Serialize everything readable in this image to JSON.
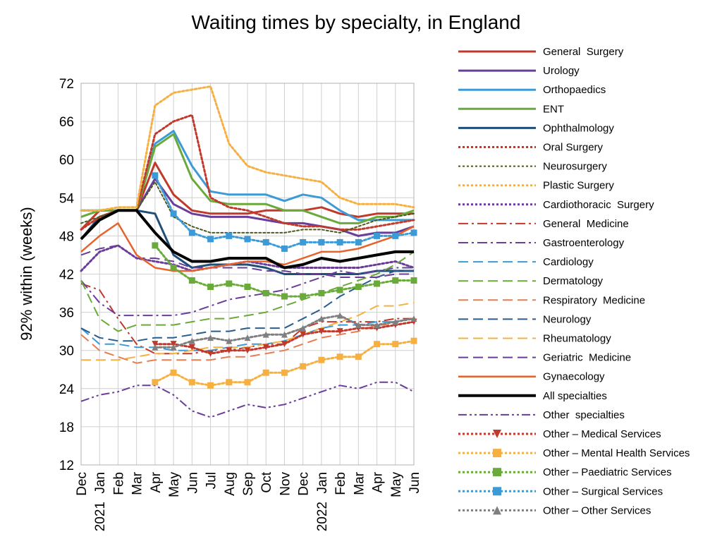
{
  "chart_data": {
    "type": "line",
    "title": "Waiting times by specialty, in England",
    "xlabel": "",
    "ylabel": "92% within (weeks)",
    "ylim": [
      12,
      72
    ],
    "yticks": [
      12,
      18,
      24,
      30,
      36,
      42,
      48,
      54,
      60,
      66,
      72
    ],
    "x_month_labels": [
      "Dec",
      "Jan",
      "Feb",
      "Mar",
      "Apr",
      "May",
      "Jun",
      "Jul",
      "Aug",
      "Sep",
      "Oct",
      "Nov",
      "Dec",
      "Jan",
      "Feb",
      "Mar",
      "Apr",
      "May",
      "Jun"
    ],
    "x_year_labels": [
      {
        "at": 1,
        "label": "2021"
      },
      {
        "at": 13,
        "label": "2022"
      }
    ],
    "grid": true,
    "legend_position": "right",
    "series": [
      {
        "name": "General  Surgery",
        "color": "#c0392b",
        "style": "solid",
        "width": 3,
        "values": [
          49,
          52,
          52,
          52,
          59.5,
          54.5,
          52,
          51.5,
          51.5,
          51.5,
          52,
          52,
          52,
          52.5,
          51.5,
          51,
          51.5,
          51.5,
          51.5
        ]
      },
      {
        "name": "Urology",
        "color": "#6a3d9a",
        "style": "solid",
        "width": 3,
        "values": [
          47.5,
          51,
          52,
          52,
          57,
          53,
          51.5,
          51,
          51,
          51,
          50.5,
          50,
          50,
          49.5,
          49,
          48,
          48.5,
          48.5,
          49.5
        ]
      },
      {
        "name": "Orthopaedics",
        "color": "#3c9ad6",
        "style": "solid",
        "width": 3,
        "values": [
          52,
          52,
          52,
          52,
          62.5,
          64.5,
          59,
          55,
          54.5,
          54.5,
          54.5,
          53.5,
          54.5,
          54,
          52,
          50.5,
          50.5,
          50.5,
          50.5
        ]
      },
      {
        "name": "ENT",
        "color": "#6aaa3a",
        "style": "solid",
        "width": 3,
        "values": [
          51,
          52,
          52,
          52,
          62,
          64,
          57,
          53.5,
          53,
          53,
          53,
          52,
          52,
          51,
          50,
          50,
          51,
          51,
          52
        ]
      },
      {
        "name": "Ophthalmology",
        "color": "#1f4e79",
        "style": "solid",
        "width": 3,
        "values": [
          47.5,
          51,
          52,
          52,
          51.5,
          45,
          43,
          43.5,
          43.5,
          43.5,
          43,
          42,
          42,
          42,
          42,
          42,
          42.5,
          42.5,
          42.5
        ]
      },
      {
        "name": "Oral Surgery",
        "color": "#c0392b",
        "style": "dot",
        "width": 3,
        "values": [
          49,
          51,
          52,
          52,
          64,
          66,
          67,
          54,
          52.5,
          52,
          51,
          50,
          49.5,
          49.5,
          49,
          49,
          49.5,
          50,
          50.5
        ]
      },
      {
        "name": "Neurosurgery",
        "color": "#4d5a1f",
        "style": "dot",
        "width": 2,
        "values": [
          50,
          51,
          52,
          52,
          56.5,
          51,
          49.5,
          48.5,
          48.5,
          48.5,
          48.5,
          48.5,
          49,
          49,
          48.5,
          49.5,
          50.5,
          51,
          51.5
        ]
      },
      {
        "name": "Plastic Surgery",
        "color": "#f5b041",
        "style": "dot",
        "width": 3,
        "values": [
          52,
          52,
          52.5,
          52.5,
          68.5,
          70.5,
          71,
          71.5,
          62.5,
          59,
          58,
          57.5,
          57,
          56.5,
          54,
          53,
          53,
          53,
          52.5
        ]
      },
      {
        "name": "Cardiothoracic  Surgery",
        "color": "#6a3d9a",
        "style": "dot",
        "width": 3,
        "values": [
          42.5,
          45.5,
          46.5,
          44.5,
          44,
          43.5,
          42.5,
          43,
          43.5,
          44,
          43.5,
          43,
          43,
          43,
          43,
          43,
          43.5,
          44,
          43
        ]
      },
      {
        "name": "General  Medicine",
        "color": "#c0392b",
        "style": "dashdot",
        "width": 2,
        "values": [
          40.5,
          39.5,
          35,
          31,
          29.5,
          29.5,
          29.5,
          30,
          30,
          30.5,
          31,
          31,
          33.5,
          34.5,
          34.5,
          34.5,
          34.5,
          35,
          35
        ]
      },
      {
        "name": "Gastroenterology",
        "color": "#6a3d9a",
        "style": "dashdot",
        "width": 2,
        "values": [
          41,
          37.5,
          35.5,
          35.5,
          35.5,
          35.5,
          36,
          37,
          38,
          38.5,
          39,
          39.5,
          40.5,
          41.5,
          42.5,
          42,
          42.5,
          43,
          43
        ]
      },
      {
        "name": "Cardiology",
        "color": "#3c9ad6",
        "style": "dash",
        "width": 2,
        "values": [
          33.5,
          31,
          31,
          30.5,
          30.5,
          30,
          30,
          30,
          30.5,
          31,
          31,
          31.5,
          32.5,
          33.5,
          34,
          34,
          34.5,
          34.5,
          35
        ]
      },
      {
        "name": "Dermatology",
        "color": "#6aaa3a",
        "style": "dash",
        "width": 2,
        "values": [
          41,
          35,
          33,
          34,
          34,
          34,
          34.5,
          35,
          35,
          35.5,
          36,
          37,
          38,
          39,
          40,
          41,
          42,
          43.5,
          45.5
        ]
      },
      {
        "name": "Respiratory  Medicine",
        "color": "#e67e51",
        "style": "dash",
        "width": 2,
        "values": [
          32.5,
          30,
          29,
          28,
          28.5,
          28.5,
          28.5,
          28.5,
          29,
          29,
          29.5,
          30,
          31,
          32,
          32.5,
          33,
          34,
          34,
          34.5
        ]
      },
      {
        "name": "Neurology",
        "color": "#2a5c8c",
        "style": "dash",
        "width": 2,
        "values": [
          33.5,
          32,
          31.5,
          31.5,
          32,
          32,
          32.5,
          33,
          33,
          33.5,
          33.5,
          33.5,
          35,
          36.5,
          38.5,
          40,
          41.5,
          42.5,
          42.5
        ]
      },
      {
        "name": "Rheumatology",
        "color": "#f5b041",
        "style": "dash",
        "width": 2,
        "values": [
          28.5,
          28.5,
          28.5,
          29,
          29.5,
          29.5,
          30,
          30.5,
          30.5,
          30.5,
          31,
          31.5,
          32.5,
          33.5,
          34.5,
          35.5,
          37,
          37,
          37.5
        ]
      },
      {
        "name": "Geriatric  Medicine",
        "color": "#6a3d9a",
        "style": "dash",
        "width": 2,
        "values": [
          45,
          46,
          46.5,
          44.5,
          44.5,
          44,
          43,
          43,
          43,
          43,
          42.5,
          42.5,
          42,
          42,
          41.5,
          41.5,
          41.5,
          42,
          42
        ]
      },
      {
        "name": "Gynaecology",
        "color": "#e8622c",
        "style": "solid",
        "width": 2.5,
        "values": [
          45.5,
          48,
          50,
          45,
          43,
          42.5,
          42.5,
          43,
          43.5,
          44,
          44,
          43.5,
          44.5,
          45.5,
          45.5,
          46,
          47,
          48,
          49.5
        ]
      },
      {
        "name": "All specialties",
        "color": "#000000",
        "style": "solid",
        "width": 4,
        "values": [
          47.5,
          50.5,
          52,
          52,
          48.5,
          45.5,
          44,
          44,
          44.5,
          44.5,
          44.5,
          43,
          43.5,
          44.5,
          44,
          44.5,
          45,
          45.5,
          45.5
        ]
      },
      {
        "name": "Other  specialties",
        "color": "#6a3d9a",
        "style": "dashdotdot",
        "width": 2,
        "values": [
          22,
          23,
          23.5,
          24.5,
          24.5,
          23,
          20.5,
          19.5,
          20.5,
          21.5,
          21,
          21.5,
          22.5,
          23.5,
          24.5,
          24,
          25,
          25,
          23.5
        ]
      },
      {
        "name": "Other – Medical Services",
        "color": "#c0392b",
        "style": "dot",
        "width": 3,
        "marker": "triangle-down",
        "values": [
          null,
          null,
          null,
          null,
          31,
          31,
          30.5,
          29.5,
          30,
          30,
          30.5,
          31,
          32.5,
          33,
          33,
          33.5,
          33.5,
          34,
          34.5
        ]
      },
      {
        "name": "Other – Mental Health Services",
        "color": "#f5b041",
        "style": "dot",
        "width": 3,
        "marker": "square",
        "values": [
          null,
          null,
          null,
          null,
          25,
          26.5,
          25,
          24.5,
          25,
          25,
          26.5,
          26.5,
          27.5,
          28.5,
          29,
          29,
          31,
          31,
          31.5
        ]
      },
      {
        "name": "Other – Paediatric Services",
        "color": "#6aaa3a",
        "style": "dot",
        "width": 3,
        "marker": "square",
        "values": [
          null,
          null,
          null,
          null,
          46.5,
          43,
          41,
          40,
          40.5,
          40,
          39,
          38.5,
          38.5,
          39,
          39.5,
          40,
          40.5,
          41,
          41
        ]
      },
      {
        "name": "Other – Surgical Services",
        "color": "#3c9ad6",
        "style": "dot",
        "width": 3,
        "marker": "square",
        "values": [
          null,
          null,
          null,
          null,
          57.5,
          51.5,
          48.5,
          47.5,
          48,
          47.5,
          47,
          46,
          47,
          47,
          47,
          47,
          48,
          48,
          48.5
        ]
      },
      {
        "name": "Other – Other Services",
        "color": "#7f7f7f",
        "style": "dot",
        "width": 3,
        "marker": "triangle-up",
        "values": [
          null,
          null,
          null,
          null,
          30.5,
          30.5,
          31.5,
          32,
          31.5,
          32,
          32.5,
          32.5,
          33.5,
          35,
          35.5,
          34,
          34,
          34.5,
          35
        ]
      }
    ]
  }
}
